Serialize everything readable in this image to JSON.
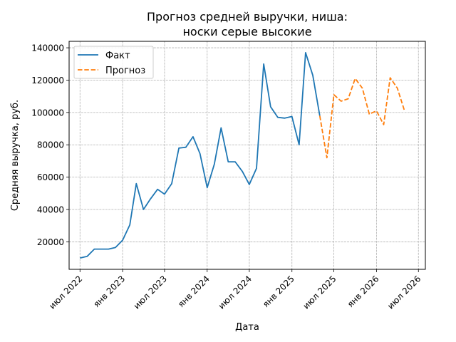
{
  "chart_data": {
    "type": "line",
    "title": [
      "Прогноз средней выручки, ниша:",
      "носки серые высокие"
    ],
    "xlabel": "Дата",
    "ylabel": "Средняя выручка, руб.",
    "x_ticks": [
      {
        "date": "2022-07-01",
        "label": "июл 2022"
      },
      {
        "date": "2023-01-01",
        "label": "янв 2023"
      },
      {
        "date": "2023-07-01",
        "label": "июл 2023"
      },
      {
        "date": "2024-01-01",
        "label": "янв 2024"
      },
      {
        "date": "2024-07-01",
        "label": "июл 2024"
      },
      {
        "date": "2025-01-01",
        "label": "янв 2025"
      },
      {
        "date": "2025-07-01",
        "label": "июл 2025"
      },
      {
        "date": "2026-01-01",
        "label": "янв 2026"
      },
      {
        "date": "2026-07-01",
        "label": "июл 2026"
      }
    ],
    "y_ticks": [
      {
        "value": 20000,
        "label": "20000"
      },
      {
        "value": 40000,
        "label": "40000"
      },
      {
        "value": 60000,
        "label": "60000"
      },
      {
        "value": 80000,
        "label": "80000"
      },
      {
        "value": 100000,
        "label": "100000"
      },
      {
        "value": 120000,
        "label": "120000"
      },
      {
        "value": 140000,
        "label": "140000"
      }
    ],
    "xlim": [
      "2022-05-15",
      "2026-07-31"
    ],
    "ylim": [
      3000,
      144000
    ],
    "grid": true,
    "legend_position": "top-left",
    "series": [
      {
        "name": "Факт",
        "color": "#1f77b4",
        "dash": "solid",
        "points": [
          {
            "x": "2022-07-01",
            "y": 10000
          },
          {
            "x": "2022-08-01",
            "y": 11000
          },
          {
            "x": "2022-09-01",
            "y": 15500
          },
          {
            "x": "2022-10-01",
            "y": 15500
          },
          {
            "x": "2022-11-01",
            "y": 15500
          },
          {
            "x": "2022-12-01",
            "y": 16500
          },
          {
            "x": "2023-01-01",
            "y": 21000
          },
          {
            "x": "2023-02-01",
            "y": 30500
          },
          {
            "x": "2023-03-01",
            "y": 56000
          },
          {
            "x": "2023-04-01",
            "y": 40000
          },
          {
            "x": "2023-05-01",
            "y": 46500
          },
          {
            "x": "2023-06-01",
            "y": 52500
          },
          {
            "x": "2023-07-01",
            "y": 49500
          },
          {
            "x": "2023-08-01",
            "y": 56000
          },
          {
            "x": "2023-09-01",
            "y": 78000
          },
          {
            "x": "2023-10-01",
            "y": 78500
          },
          {
            "x": "2023-11-01",
            "y": 85000
          },
          {
            "x": "2023-12-01",
            "y": 74500
          },
          {
            "x": "2024-01-01",
            "y": 53500
          },
          {
            "x": "2024-02-01",
            "y": 68000
          },
          {
            "x": "2024-03-01",
            "y": 90500
          },
          {
            "x": "2024-04-01",
            "y": 69500
          },
          {
            "x": "2024-05-01",
            "y": 69500
          },
          {
            "x": "2024-06-01",
            "y": 63500
          },
          {
            "x": "2024-07-01",
            "y": 55500
          },
          {
            "x": "2024-08-01",
            "y": 65500
          },
          {
            "x": "2024-09-01",
            "y": 130000
          },
          {
            "x": "2024-10-01",
            "y": 103500
          },
          {
            "x": "2024-11-01",
            "y": 97000
          },
          {
            "x": "2024-12-01",
            "y": 96500
          },
          {
            "x": "2025-01-01",
            "y": 97500
          },
          {
            "x": "2025-02-01",
            "y": 80000
          },
          {
            "x": "2025-03-01",
            "y": 137000
          },
          {
            "x": "2025-04-01",
            "y": 123000
          },
          {
            "x": "2025-05-01",
            "y": 98000
          }
        ]
      },
      {
        "name": "Прогноз",
        "color": "#ff7f0e",
        "dash": "dashed",
        "points": [
          {
            "x": "2025-05-01",
            "y": 98000
          },
          {
            "x": "2025-06-01",
            "y": 72000
          },
          {
            "x": "2025-07-01",
            "y": 111000
          },
          {
            "x": "2025-08-01",
            "y": 107000
          },
          {
            "x": "2025-09-01",
            "y": 108500
          },
          {
            "x": "2025-10-01",
            "y": 121000
          },
          {
            "x": "2025-11-01",
            "y": 115000
          },
          {
            "x": "2025-12-01",
            "y": 99000
          },
          {
            "x": "2026-01-01",
            "y": 101000
          },
          {
            "x": "2026-02-01",
            "y": 92500
          },
          {
            "x": "2026-03-01",
            "y": 121500
          },
          {
            "x": "2026-04-01",
            "y": 115000
          },
          {
            "x": "2026-05-01",
            "y": 101500
          }
        ]
      }
    ]
  }
}
